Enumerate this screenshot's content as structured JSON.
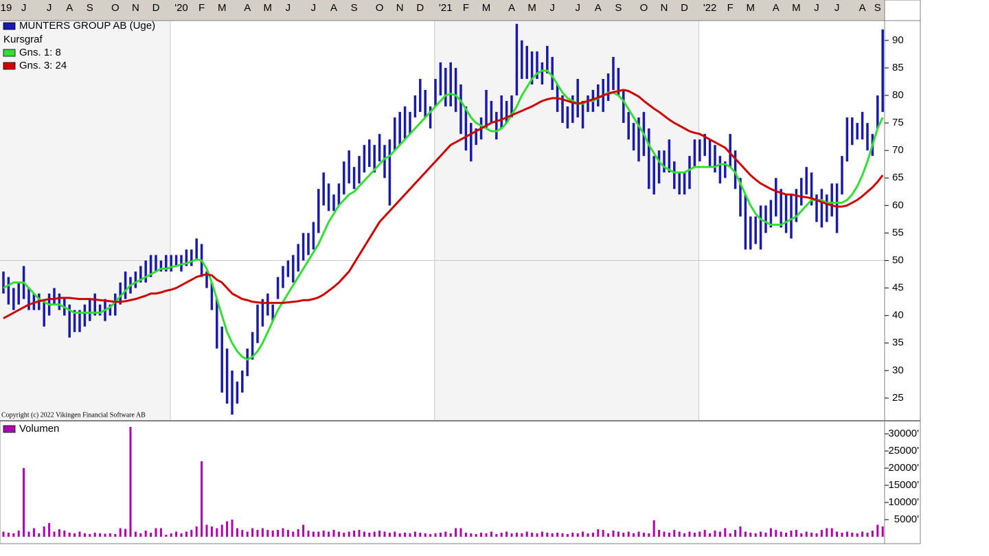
{
  "chart_data": [
    {
      "type": "stock",
      "subtitle": "Kursgraf",
      "copyright": "Copyright (c) 2022 Vikingen Financial Software AB",
      "categories": [
        "19",
        null,
        null,
        null,
        "J",
        null,
        null,
        null,
        null,
        "J",
        null,
        null,
        null,
        "A",
        null,
        null,
        null,
        "S",
        null,
        null,
        null,
        null,
        "O",
        null,
        null,
        null,
        "N",
        null,
        null,
        null,
        "D",
        null,
        null,
        null,
        null,
        "'20",
        null,
        null,
        null,
        "F",
        null,
        null,
        null,
        "M",
        null,
        null,
        null,
        null,
        "A",
        null,
        null,
        null,
        "M",
        null,
        null,
        null,
        "J",
        null,
        null,
        null,
        null,
        "J",
        null,
        null,
        null,
        "A",
        null,
        null,
        null,
        "S",
        null,
        null,
        null,
        null,
        "O",
        null,
        null,
        null,
        "N",
        null,
        null,
        null,
        "D",
        null,
        null,
        null,
        null,
        "'21",
        null,
        null,
        null,
        "F",
        null,
        null,
        null,
        "M",
        null,
        null,
        null,
        null,
        "A",
        null,
        null,
        null,
        "M",
        null,
        null,
        null,
        "J",
        null,
        null,
        null,
        null,
        "J",
        null,
        null,
        null,
        "A",
        null,
        null,
        null,
        "S",
        null,
        null,
        null,
        null,
        "O",
        null,
        null,
        null,
        "N",
        null,
        null,
        null,
        "D",
        null,
        null,
        null,
        null,
        "'22",
        null,
        null,
        null,
        "F",
        null,
        null,
        null,
        "M",
        null,
        null,
        null,
        null,
        "A",
        null,
        null,
        null,
        "M",
        null,
        null,
        null,
        "J",
        null,
        null,
        null,
        "J",
        null,
        null,
        null,
        null,
        "A",
        null,
        null,
        "S",
        null
      ],
      "series": [
        {
          "name": "MUNTERS GROUP AB (Uge)",
          "color": "#1a1aa8",
          "high": [
            48,
            47,
            45,
            46,
            49,
            45,
            44,
            44,
            43,
            44,
            45,
            44,
            43,
            42,
            41,
            41,
            42,
            43,
            44,
            42,
            43,
            42,
            44,
            46,
            48,
            47,
            48,
            49,
            50,
            51,
            51,
            50,
            51,
            51,
            51,
            51,
            52,
            52,
            54,
            53,
            48,
            46,
            43,
            38,
            34,
            30,
            28,
            30,
            34,
            37,
            42,
            43,
            44,
            42,
            47,
            49,
            50,
            51,
            53,
            55,
            55,
            57,
            63,
            66,
            64,
            62,
            64,
            68,
            70,
            67,
            69,
            71,
            72,
            71,
            73,
            71,
            72,
            76,
            77,
            78,
            77,
            80,
            83,
            81,
            78,
            83,
            86,
            85,
            86,
            85,
            82,
            78,
            75,
            74,
            76,
            81,
            79,
            77,
            80,
            79,
            80,
            93,
            90,
            89,
            88,
            88,
            86,
            89,
            87,
            82,
            80,
            78,
            80,
            83,
            79,
            80,
            81,
            82,
            83,
            84,
            87,
            85,
            81,
            77,
            75,
            76,
            77,
            74,
            69,
            70,
            70,
            72,
            68,
            66,
            66,
            69,
            72,
            72,
            73,
            72,
            71,
            69,
            68,
            73,
            70,
            65,
            62,
            58,
            58,
            60,
            60,
            61,
            65,
            63,
            62,
            62,
            63,
            65,
            67,
            66,
            62,
            63,
            62,
            64,
            64,
            69,
            76,
            76,
            75,
            77,
            75,
            73,
            80,
            92
          ],
          "low": [
            44,
            42,
            41,
            42,
            43,
            41,
            41,
            41,
            38,
            40,
            42,
            41,
            40,
            36,
            37,
            37,
            38,
            39,
            40,
            40,
            39,
            40,
            40,
            42,
            43,
            44,
            45,
            46,
            46,
            47,
            48,
            48,
            48,
            48,
            49,
            48,
            49,
            49,
            50,
            47,
            45,
            41,
            34,
            26,
            24,
            22,
            24,
            26,
            29,
            32,
            35,
            38,
            40,
            39,
            43,
            45,
            47,
            46,
            48,
            50,
            51,
            52,
            55,
            60,
            59,
            59,
            60,
            62,
            64,
            63,
            64,
            66,
            67,
            66,
            68,
            65,
            60,
            70,
            71,
            72,
            73,
            76,
            77,
            76,
            74,
            78,
            80,
            78,
            78,
            77,
            73,
            70,
            68,
            71,
            72,
            74,
            75,
            72,
            74,
            75,
            76,
            80,
            83,
            83,
            82,
            83,
            82,
            84,
            81,
            77,
            75,
            74,
            75,
            76,
            74,
            77,
            77,
            78,
            77,
            79,
            81,
            80,
            75,
            72,
            70,
            68,
            69,
            63,
            62,
            64,
            66,
            66,
            63,
            62,
            62,
            63,
            67,
            68,
            69,
            67,
            66,
            64,
            65,
            67,
            63,
            58,
            52,
            52,
            53,
            52,
            55,
            56,
            58,
            56,
            55,
            54,
            57,
            60,
            62,
            60,
            57,
            56,
            57,
            58,
            55,
            62,
            68,
            71,
            72,
            72,
            70,
            69,
            74,
            77
          ]
        },
        {
          "name": "Gns. 1: 8",
          "color": "#33dd33",
          "values": [
            45,
            45.5,
            46,
            46,
            46,
            45,
            44,
            43,
            42.5,
            42,
            42,
            42,
            41.5,
            41,
            40.5,
            40.5,
            40.5,
            40.5,
            40.5,
            40.5,
            41,
            41.5,
            42.5,
            43.5,
            44.5,
            45.5,
            46,
            46.5,
            47,
            47.5,
            48,
            48.5,
            48.5,
            48.8,
            49,
            49.3,
            49.5,
            49.8,
            50.2,
            50,
            48.5,
            46,
            43,
            40,
            37,
            35,
            33.5,
            32.5,
            32,
            32.5,
            33.5,
            35,
            37,
            39,
            41,
            42.5,
            44,
            45.5,
            47,
            48.5,
            50,
            51.5,
            53,
            55,
            57,
            58.5,
            60,
            61,
            62,
            62.5,
            63.5,
            64.5,
            65.5,
            66.5,
            67.5,
            68.5,
            69,
            70,
            71,
            72,
            73,
            74,
            75,
            76,
            77,
            78,
            79,
            80,
            80.3,
            80,
            79,
            77.5,
            76,
            75,
            74.5,
            74,
            73.5,
            73.5,
            74,
            75,
            76.5,
            78,
            80,
            81.5,
            83,
            84,
            84.5,
            84.5,
            83.5,
            82,
            80.5,
            79.5,
            79,
            78.5,
            78.5,
            79,
            79,
            79.5,
            80,
            80.5,
            80.5,
            80,
            79,
            77.5,
            76,
            74.5,
            73,
            71,
            69.5,
            68,
            67,
            66.5,
            66,
            66,
            66,
            66.5,
            67,
            67,
            67,
            67,
            67,
            67.5,
            67.5,
            67,
            66,
            64,
            62,
            60,
            58.5,
            57.5,
            57,
            56.5,
            56.5,
            56.5,
            57,
            57.5,
            58,
            59,
            60,
            61,
            61,
            61,
            60.5,
            60.5,
            60.5,
            60.5,
            61,
            62,
            63.5,
            65.5,
            68,
            71,
            74,
            76
          ]
        },
        {
          "name": "Gns. 3: 24",
          "color": "#cc0000",
          "values": [
            39.5,
            40,
            40.5,
            41,
            41.5,
            42,
            42.3,
            42.6,
            42.8,
            43,
            43,
            43.2,
            43.2,
            43.2,
            43.1,
            43,
            43,
            43,
            42.9,
            42.8,
            42.7,
            42.6,
            42.5,
            42.5,
            42.6,
            42.8,
            43,
            43.3,
            43.6,
            44,
            44,
            44.2,
            44.5,
            44.7,
            45,
            45.5,
            46,
            46.5,
            47,
            47.3,
            47.5,
            47.3,
            46.5,
            46,
            45,
            44,
            43.5,
            43,
            42.8,
            42.5,
            42.4,
            42.3,
            42.3,
            42.3,
            42.3,
            42.3,
            42.4,
            42.5,
            42.6,
            42.8,
            42.8,
            43,
            43.3,
            43.8,
            44.5,
            45.2,
            46,
            47,
            48,
            49.5,
            51,
            52.5,
            54,
            55.5,
            57,
            58,
            59,
            60,
            61,
            62,
            63,
            64,
            65,
            66,
            67,
            68,
            69,
            70,
            71,
            71.5,
            72,
            72.5,
            73,
            73.5,
            74,
            74.5,
            75,
            75.3,
            75.6,
            76,
            76.4,
            76.8,
            77.2,
            77.6,
            78,
            78.5,
            79,
            79.3,
            79.5,
            79.5,
            79.3,
            79,
            78.7,
            78.5,
            78.7,
            79,
            79.3,
            79.6,
            80,
            80.3,
            80.6,
            80.8,
            81,
            80.8,
            80.3,
            79.8,
            79,
            78.3,
            77.6,
            77,
            76.3,
            75.6,
            75,
            74.5,
            74,
            73.5,
            73.2,
            73,
            72.5,
            72,
            71.5,
            71,
            70.5,
            69.5,
            68.5,
            67.5,
            66.5,
            65.5,
            64.7,
            64,
            63.5,
            63,
            62.6,
            62.3,
            62,
            62,
            61.8,
            61.6,
            61.5,
            61.3,
            61,
            60.6,
            60.3,
            60,
            59.8,
            59.8,
            60,
            60.5,
            61,
            61.7,
            62.5,
            63.3,
            64.3,
            65.5
          ]
        }
      ],
      "ylim": [
        21,
        93.6
      ],
      "yticks": [
        25,
        30,
        35,
        40,
        45,
        50,
        55,
        60,
        65,
        70,
        75,
        80,
        85,
        90
      ],
      "hline": 50
    },
    {
      "type": "bar",
      "series": [
        {
          "name": "Volumen",
          "color": "#b000b0",
          "values": [
            1500,
            1200,
            1000,
            1800,
            20000,
            1500,
            2500,
            1000,
            3000,
            4000,
            1500,
            2200,
            1800,
            1200,
            1000,
            1500,
            1000,
            800,
            1200,
            1000,
            900,
            1000,
            800,
            2500,
            2300,
            32000,
            1500,
            1000,
            1800,
            1200,
            2500,
            2500,
            600,
            1000,
            1500,
            1000,
            1500,
            2000,
            3000,
            22000,
            3500,
            3000,
            2500,
            3500,
            4500,
            5000,
            2500,
            2000,
            1500,
            2500,
            2000,
            2500,
            2000,
            1800,
            2000,
            2500,
            2000,
            1500,
            2200,
            3500,
            1800,
            1500,
            1500,
            1800,
            1500,
            2000,
            1500,
            1200,
            1500,
            1800,
            2000,
            1500,
            1200,
            1500,
            1800,
            1500,
            1200,
            1500,
            1000,
            1200,
            1000,
            1500,
            1200,
            1000,
            800,
            1000,
            1200,
            1500,
            1000,
            2500,
            2500,
            1200,
            1000,
            800,
            1200,
            1000,
            1500,
            800,
            1200,
            1500,
            1000,
            1200,
            1000,
            1500,
            1200,
            1000,
            1500,
            1200,
            1000,
            1200,
            1000,
            800,
            1200,
            1000,
            1500,
            1000,
            1200,
            2200,
            2000,
            1000,
            1800,
            1500,
            1200,
            1500,
            1000,
            1500,
            1200,
            1000,
            4800,
            2000,
            1500,
            1200,
            2000,
            1500,
            1000,
            1500,
            1200,
            1500,
            2000,
            1000,
            1800,
            1500,
            2500,
            1000,
            2000,
            3000,
            1500,
            1200,
            1000,
            1500,
            1200,
            2500,
            2000,
            1500,
            1200,
            1800,
            2000,
            1000,
            1500,
            1200,
            1000,
            2000,
            2500,
            2500,
            1500,
            1200,
            1500,
            1200,
            1000,
            1500,
            1200,
            1800,
            3500,
            3000
          ]
        }
      ],
      "ylim": [
        0,
        33400
      ],
      "yticks": [
        {
          "value": 5000,
          "label": "5000'"
        },
        {
          "value": 10000,
          "label": "10000'"
        },
        {
          "value": 15000,
          "label": "15000'"
        },
        {
          "value": 20000,
          "label": "20000'"
        },
        {
          "value": 25000,
          "label": "25000'"
        },
        {
          "value": 30000,
          "label": "30000'"
        }
      ]
    }
  ]
}
